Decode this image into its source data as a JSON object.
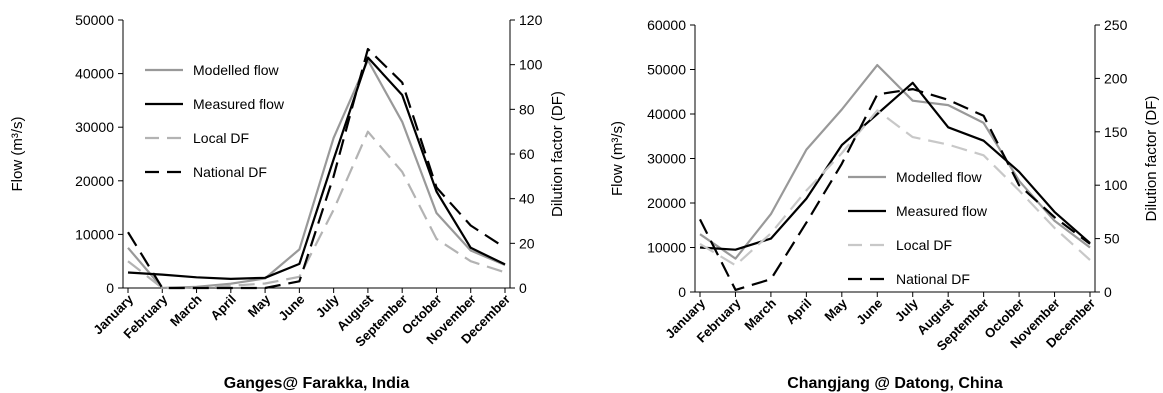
{
  "chart_data": [
    {
      "type": "line",
      "title": "Ganges@ Farakka, India",
      "ylabel_left": "Flow (m³/s)",
      "ylabel_right": "Dilution factor (DF)",
      "ylim_left": [
        0,
        50000
      ],
      "yticks_left": [
        "0",
        "10000",
        "20000",
        "30000",
        "40000",
        "50000"
      ],
      "ylim_right": [
        0,
        120
      ],
      "yticks_right": [
        "0",
        "20",
        "40",
        "60",
        "80",
        "100",
        "120"
      ],
      "categories": [
        "January",
        "February",
        "March",
        "April",
        "May",
        "June",
        "July",
        "August",
        "September",
        "October",
        "November",
        "December"
      ],
      "legend_position": "upper-left",
      "series": [
        {
          "name": "Modelled flow",
          "axis": "left",
          "color": "#999999",
          "dash": "solid",
          "values": [
            7500,
            0,
            200,
            800,
            1800,
            7200,
            28000,
            42500,
            31000,
            14000,
            7000,
            4300
          ]
        },
        {
          "name": "Measured flow",
          "axis": "left",
          "color": "#000000",
          "dash": "solid",
          "values": [
            2900,
            2500,
            2000,
            1700,
            1900,
            4500,
            24000,
            43000,
            36000,
            18000,
            7500,
            4400
          ]
        },
        {
          "name": "Local DF",
          "axis": "right",
          "color": "#b3b3b3",
          "dash": "long",
          "values": [
            12,
            0,
            0,
            1,
            2,
            5,
            35,
            70,
            52,
            22,
            12,
            7
          ]
        },
        {
          "name": "National DF",
          "axis": "right",
          "color": "#000000",
          "dash": "long",
          "values": [
            25,
            0,
            0,
            0,
            0,
            3,
            50,
            107,
            92,
            45,
            28,
            18
          ]
        }
      ]
    },
    {
      "type": "line",
      "title": "Changjang @ Datong, China",
      "ylabel_left": "Flow (m³/s)",
      "ylabel_right": "Dilution factor (DF)",
      "ylim_left": [
        0,
        60000
      ],
      "yticks_left": [
        "0",
        "10000",
        "20000",
        "30000",
        "40000",
        "50000",
        "60000"
      ],
      "ylim_right": [
        0,
        250
      ],
      "yticks_right": [
        "0",
        "50",
        "100",
        "150",
        "200",
        "250"
      ],
      "categories": [
        "January",
        "February",
        "March",
        "April",
        "May",
        "June",
        "July",
        "August",
        "September",
        "October",
        "November",
        "December"
      ],
      "legend_position": "center",
      "series": [
        {
          "name": "Modelled flow",
          "axis": "left",
          "color": "#999999",
          "dash": "solid",
          "values": [
            13000,
            7500,
            17500,
            32000,
            41000,
            51000,
            43000,
            42000,
            38000,
            25000,
            16000,
            10000
          ]
        },
        {
          "name": "Measured flow",
          "axis": "left",
          "color": "#000000",
          "dash": "solid",
          "values": [
            10000,
            9500,
            12000,
            21000,
            33000,
            40000,
            47000,
            37000,
            34000,
            27000,
            18000,
            11000
          ]
        },
        {
          "name": "Local DF",
          "axis": "right",
          "color": "#c8c8c8",
          "dash": "long",
          "values": [
            45,
            25,
            55,
            95,
            130,
            170,
            145,
            138,
            128,
            95,
            60,
            30
          ]
        },
        {
          "name": "National DF",
          "axis": "right",
          "color": "#000000",
          "dash": "long",
          "values": [
            68,
            2,
            12,
            65,
            120,
            185,
            190,
            180,
            165,
            100,
            70,
            45
          ]
        }
      ]
    }
  ]
}
